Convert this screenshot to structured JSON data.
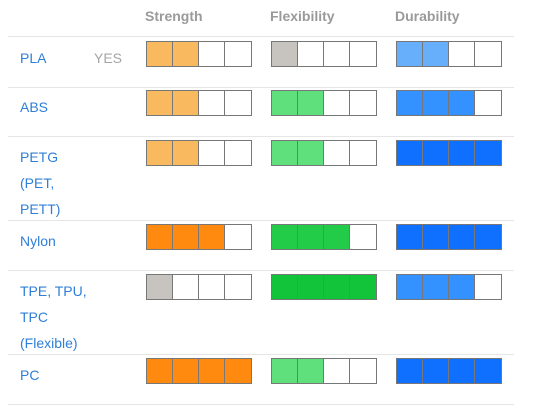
{
  "headers": {
    "strength": "Strength",
    "flexibility": "Flexibility",
    "durability": "Durability"
  },
  "colors": {
    "empty": "#ffffff",
    "gray": "#c7c4bf",
    "strength": [
      "#f9b95e",
      "#f9b95e",
      "#ff8a0f",
      "#ff8a0f"
    ],
    "flexibility": [
      "#5fe07c",
      "#5fe07c",
      "#22cc49",
      "#12c43a"
    ],
    "durability": [
      "#67aefb",
      "#3392ff",
      "#0f6fff",
      "#0f6fff"
    ]
  },
  "rows": [
    {
      "name": "PLA",
      "flag": "YES",
      "strength": {
        "filled": 2,
        "color": "#f9b95e"
      },
      "flexibility": {
        "filled": 1,
        "color": "#c7c4bf"
      },
      "durability": {
        "filled": 2,
        "color": "#67aefb"
      }
    },
    {
      "name": "ABS",
      "flag": "",
      "strength": {
        "filled": 2,
        "color": "#f9b95e"
      },
      "flexibility": {
        "filled": 2,
        "color": "#5fe07c"
      },
      "durability": {
        "filled": 3,
        "color": "#3392ff"
      }
    },
    {
      "name": "PETG\n(PET,\nPETT)",
      "flag": "",
      "strength": {
        "filled": 2,
        "color": "#f9b95e"
      },
      "flexibility": {
        "filled": 2,
        "color": "#5fe07c"
      },
      "durability": {
        "filled": 4,
        "color": "#0f6fff"
      }
    },
    {
      "name": "Nylon",
      "flag": "",
      "strength": {
        "filled": 3,
        "color": "#ff8a0f"
      },
      "flexibility": {
        "filled": 3,
        "color": "#22cc49"
      },
      "durability": {
        "filled": 4,
        "color": "#0f6fff"
      }
    },
    {
      "name": "TPE, TPU,\nTPC\n(Flexible)",
      "flag": "",
      "strength": {
        "filled": 1,
        "color": "#c7c4bf"
      },
      "flexibility": {
        "filled": 4,
        "color": "#12c43a"
      },
      "durability": {
        "filled": 3,
        "color": "#3392ff"
      }
    },
    {
      "name": "PC",
      "flag": "",
      "strength": {
        "filled": 4,
        "color": "#ff8a0f"
      },
      "flexibility": {
        "filled": 2,
        "color": "#5fe07c"
      },
      "durability": {
        "filled": 4,
        "color": "#0f6fff"
      }
    }
  ]
}
